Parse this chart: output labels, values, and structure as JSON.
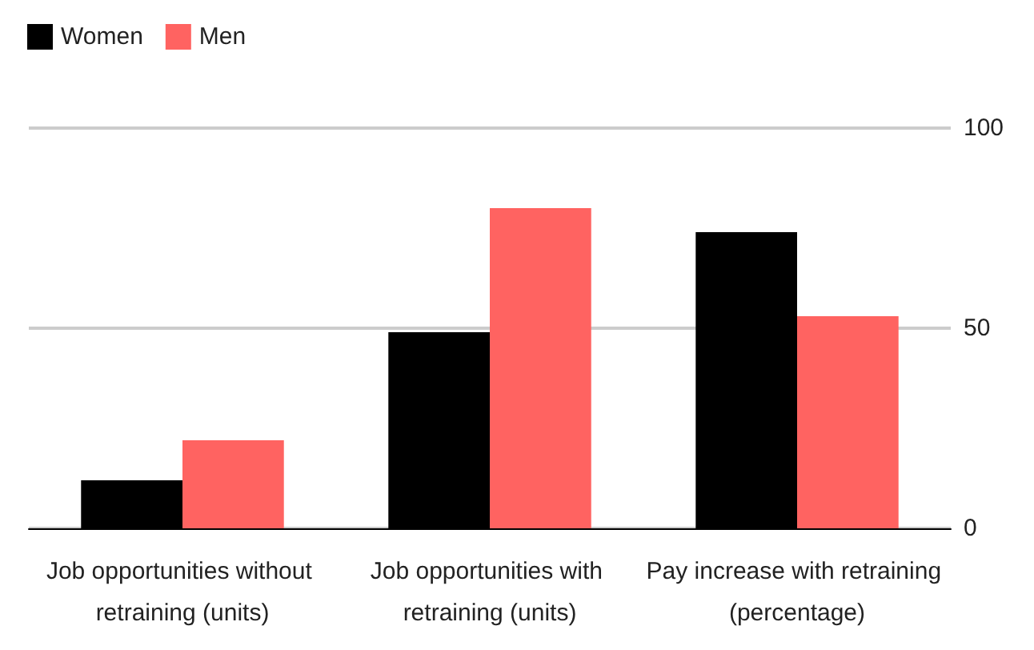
{
  "chart_data": {
    "type": "bar",
    "categories": [
      "Job opportunities without retraining (units)",
      "Job opportunities with retraining (units)",
      "Pay increase with retraining (percentage)"
    ],
    "series": [
      {
        "name": "Women",
        "color": "#000000",
        "values": [
          12,
          49,
          74
        ]
      },
      {
        "name": "Men",
        "color": "#ff6361",
        "values": [
          22,
          80,
          53
        ]
      }
    ],
    "ylim": [
      0,
      100
    ],
    "yticks": [
      0,
      50,
      100
    ],
    "grid": "y",
    "legend": "top left"
  }
}
